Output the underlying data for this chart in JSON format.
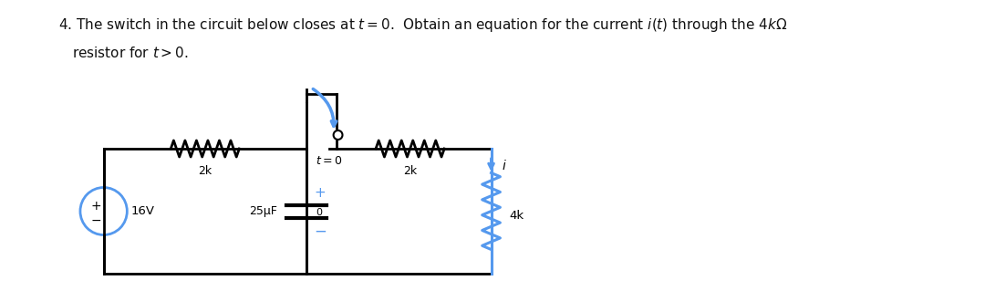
{
  "title_line1": "4. The switch in the circuit below closes at $t = 0$.  Obtain an equation for the current $i(t)$ through the $4k\\Omega$",
  "title_line2": "resistor for $t > 0$.",
  "bg_color": "#ffffff",
  "circuit_color": "#000000",
  "blue_color": "#5599ee",
  "label_2k_left": "2k",
  "label_2k_right": "2k",
  "label_cap": "25μF",
  "label_16V": "16V",
  "label_4k": "4k",
  "label_t0": "$t=0$",
  "label_i": "$i$",
  "label_plus": "+",
  "label_minus": "−",
  "label_node": "0"
}
